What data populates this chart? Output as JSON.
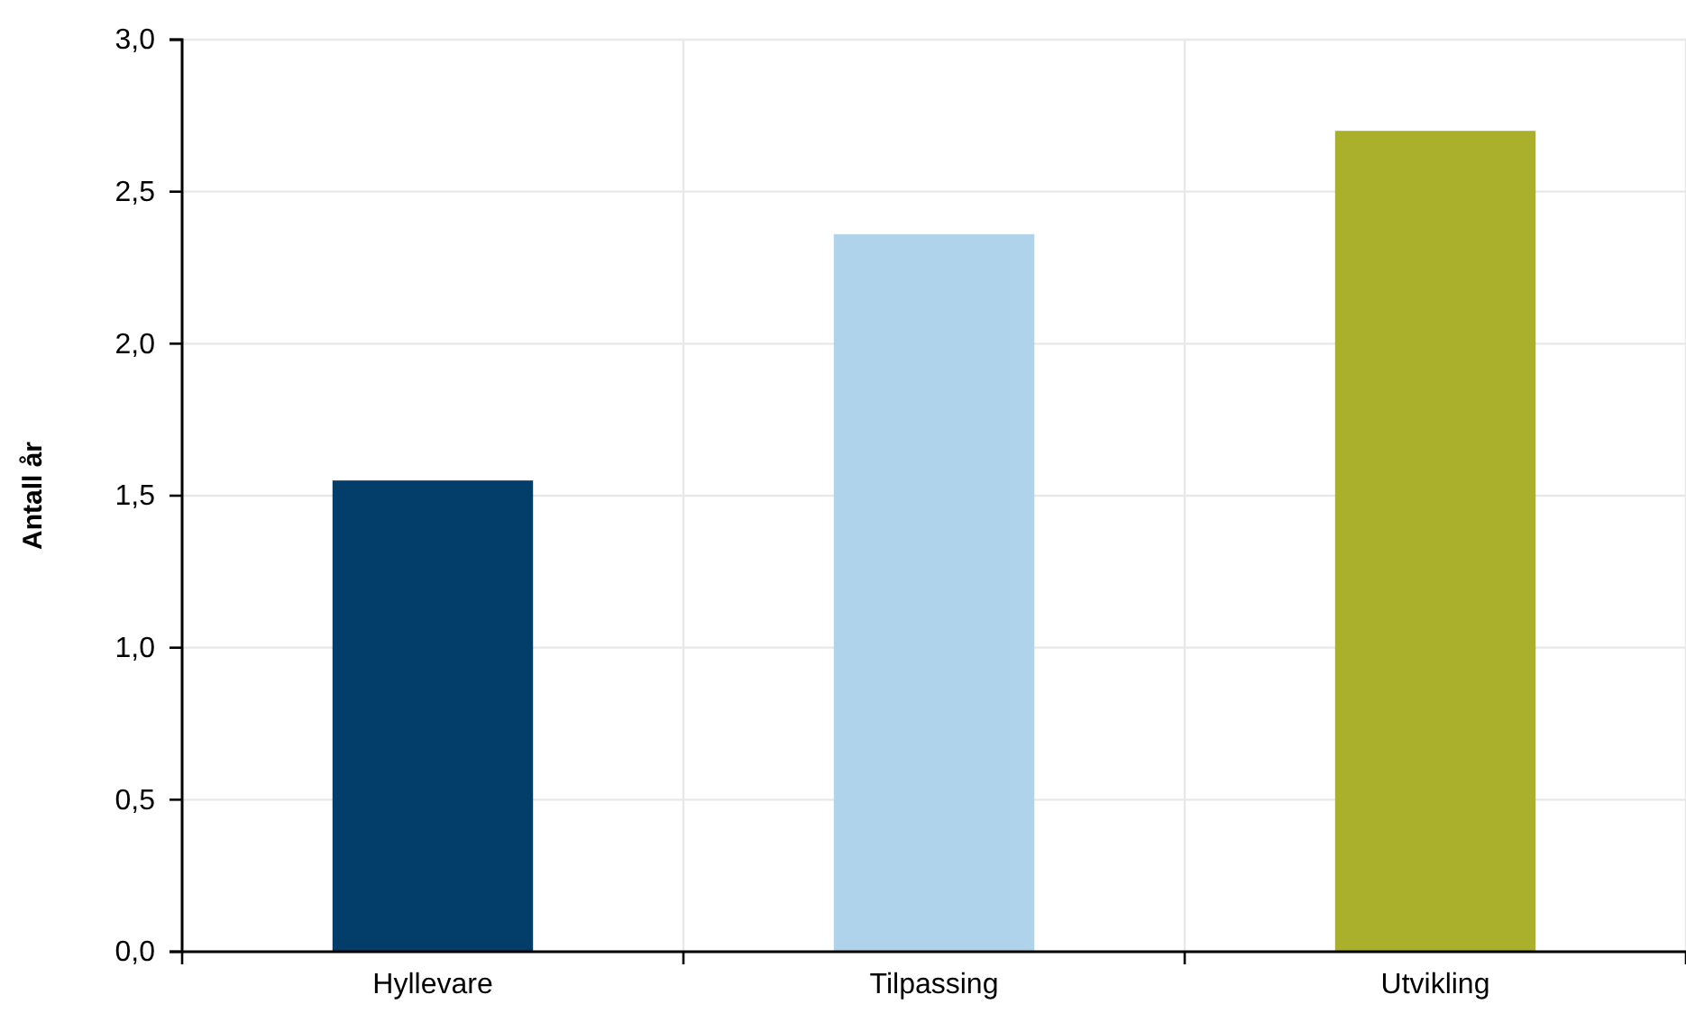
{
  "chart_data": {
    "type": "bar",
    "ylabel": "Antall år",
    "categories": [
      "Hyllevare",
      "Tilpassing",
      "Utvikling"
    ],
    "values": [
      1.55,
      2.36,
      2.7
    ],
    "colors": [
      "#023e69",
      "#afd3ea",
      "#aab02c"
    ],
    "ylim": [
      0,
      3
    ],
    "yticks": [
      {
        "value": 0,
        "label": "0,0"
      },
      {
        "value": 0.5,
        "label": "0,5"
      },
      {
        "value": 1,
        "label": "1,0"
      },
      {
        "value": 1.5,
        "label": "1,5"
      },
      {
        "value": 2,
        "label": "2,0"
      },
      {
        "value": 2.5,
        "label": "2,5"
      },
      {
        "value": 3,
        "label": "3,0"
      }
    ],
    "grid": true
  }
}
